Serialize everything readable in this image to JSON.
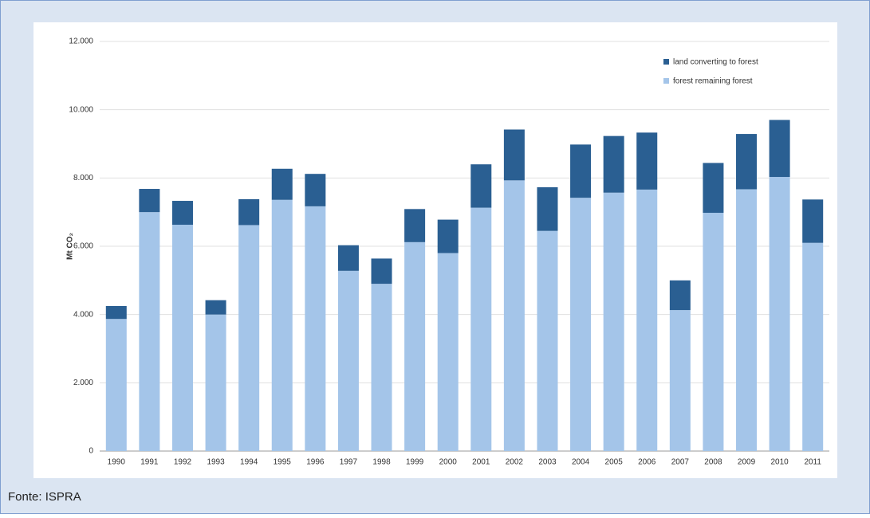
{
  "chart_data": {
    "type": "stacked_bar",
    "y_label": "Mt CO₂",
    "source": "Fonte: ISPRA",
    "categories": [
      "1990",
      "1991",
      "1992",
      "1993",
      "1994",
      "1995",
      "1996",
      "1997",
      "1998",
      "1999",
      "2000",
      "2001",
      "2002",
      "2003",
      "2004",
      "2005",
      "2006",
      "2007",
      "2008",
      "2009",
      "2010",
      "2011"
    ],
    "series": [
      {
        "name": "forest remaining forest",
        "color": "#a4c5e9",
        "values": [
          3870,
          7000,
          6630,
          4000,
          6620,
          7360,
          7170,
          5280,
          4900,
          6120,
          5800,
          7130,
          7930,
          6450,
          7420,
          7570,
          7660,
          4130,
          6980,
          7670,
          8030,
          6100
        ]
      },
      {
        "name": "land converting to forest",
        "color": "#2a5f92",
        "values": [
          380,
          680,
          700,
          420,
          760,
          910,
          950,
          750,
          740,
          970,
          980,
          1270,
          1490,
          1280,
          1560,
          1660,
          1670,
          870,
          1460,
          1620,
          1670,
          1270
        ]
      }
    ],
    "ylim": [
      0,
      12000
    ],
    "yticks": [
      0,
      {
        "value": 2000,
        "label": "2.000"
      },
      {
        "value": 4000,
        "label": "4.000"
      },
      {
        "value": 6000,
        "label": "6.000"
      },
      {
        "value": 8000,
        "label": "8.000"
      },
      {
        "value": 10000,
        "label": "10.000"
      },
      {
        "value": 12000,
        "label": "12.000"
      }
    ],
    "grid": true,
    "legend": "top-right"
  }
}
